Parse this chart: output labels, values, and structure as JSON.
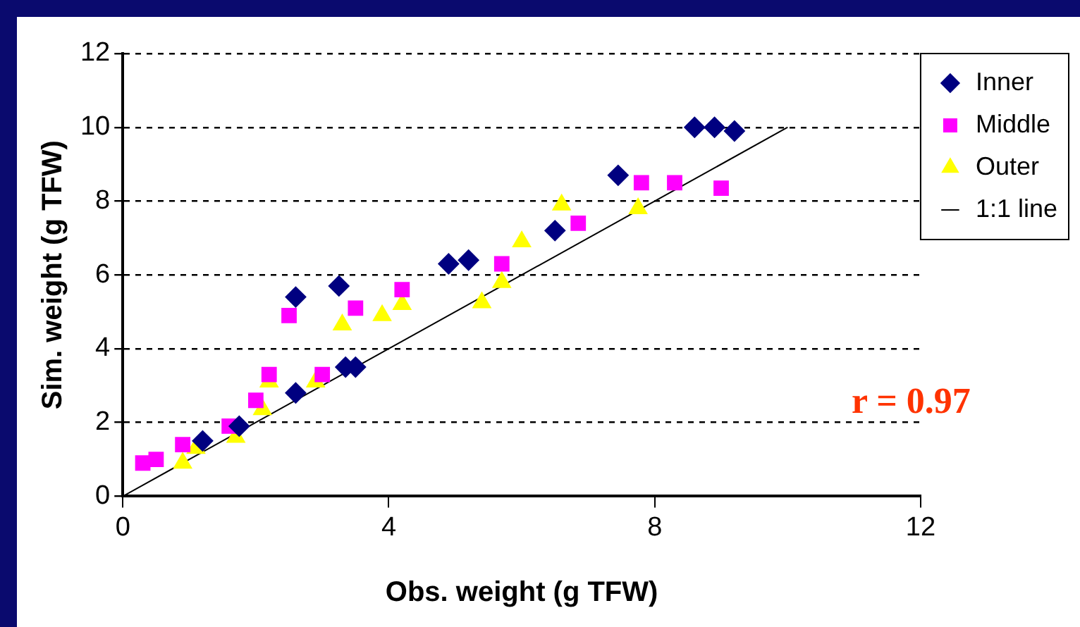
{
  "chart_data": {
    "type": "scatter",
    "xlabel": "Obs. weight (g TFW)",
    "ylabel": "Sim. weight (g TFW)",
    "xlim": [
      0,
      12
    ],
    "xticks": [
      0,
      4,
      8,
      12
    ],
    "ylim": [
      0,
      12
    ],
    "yticks": [
      0,
      2,
      4,
      6,
      8,
      10,
      12
    ],
    "grid": "y",
    "legend": "right",
    "annotations": [
      "r = 0.97"
    ],
    "series": [
      {
        "name": "Inner",
        "color": "#000080",
        "marker": "diamond",
        "x": [
          1.2,
          1.75,
          2.6,
          2.6,
          3.25,
          3.35,
          3.5,
          4.9,
          5.2,
          6.5,
          7.45,
          8.6,
          8.9,
          9.2
        ],
        "values": [
          1.5,
          1.9,
          2.8,
          5.4,
          5.7,
          3.5,
          3.5,
          6.3,
          6.4,
          7.2,
          8.7,
          10,
          10,
          9.9
        ]
      },
      {
        "name": "Middle",
        "color": "#ff00ff",
        "marker": "square",
        "x": [
          0.3,
          0.5,
          0.9,
          1.6,
          2.0,
          2.2,
          2.5,
          3.0,
          3.5,
          4.2,
          5.7,
          6.85,
          7.8,
          8.3,
          9.0
        ],
        "values": [
          0.9,
          1.0,
          1.4,
          1.9,
          2.6,
          3.3,
          4.9,
          3.3,
          5.1,
          5.6,
          6.3,
          7.4,
          8.5,
          8.5,
          8.35
        ]
      },
      {
        "name": "Outer",
        "color": "#ffff00",
        "marker": "triangle",
        "x": [
          0.9,
          1.1,
          1.7,
          2.1,
          2.2,
          2.9,
          3.3,
          3.9,
          4.2,
          5.4,
          5.7,
          6.0,
          6.6,
          7.75
        ],
        "values": [
          0.9,
          1.3,
          1.6,
          2.35,
          3.1,
          3.1,
          4.65,
          4.9,
          5.2,
          5.25,
          5.8,
          6.9,
          7.9,
          7.8
        ]
      },
      {
        "name": "1:1 line",
        "type": "line",
        "color": "#000000",
        "marker": "none",
        "line_style": "solid",
        "x": [
          0,
          10
        ],
        "values": [
          0,
          10
        ]
      }
    ]
  }
}
